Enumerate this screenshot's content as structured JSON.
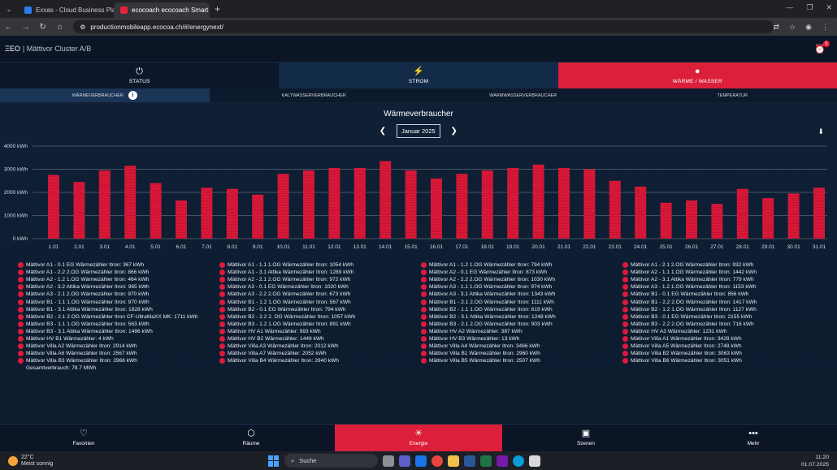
{
  "browser": {
    "tabs": [
      {
        "title": "Exxas - Cloud Business Platform",
        "color": "#2b7de9"
      },
      {
        "title": "ecocoach ecocoach Smart Energ",
        "color": "#e8223c"
      }
    ],
    "url": "productionmobileapp.ecocoa.ch/#/energynext/"
  },
  "header": {
    "logo": "ΞEO",
    "title": "Mättivor Cluster A/B",
    "alarm_count": "5"
  },
  "main_tabs": [
    {
      "label": "STATUS",
      "icon": "power-icon"
    },
    {
      "label": "STROM",
      "icon": "bolt-icon"
    },
    {
      "label": "WÄRME / WASSER",
      "icon": "drop-icon"
    }
  ],
  "sub_tabs": [
    {
      "label": "WÄRMEVERBRAUCHER"
    },
    {
      "label": "KALTWASSERVERBRAUCHER"
    },
    {
      "label": "WARMWASSERVERBRAUCHER"
    },
    {
      "label": "TEMPERATUR"
    }
  ],
  "info_glyph": "i",
  "chart_title": "Wärmeverbraucher",
  "month": "Januar 2025",
  "chart_data": {
    "type": "bar",
    "stacked": true,
    "ylim": [
      0,
      4000
    ],
    "yticks": [
      "0 kWh",
      "1000 kWh",
      "2000 kWh",
      "3000 kWh",
      "4000 kWh"
    ],
    "categories": [
      "1.01",
      "2.01",
      "3.01",
      "4.01",
      "5.01",
      "6.01",
      "7.01",
      "8.01",
      "9.01",
      "10.01",
      "11.01",
      "12.01",
      "13.01",
      "14.01",
      "15.01",
      "16.01",
      "17.01",
      "18.01",
      "19.01",
      "20.01",
      "21.01",
      "22.01",
      "23.01",
      "24.01",
      "25.01",
      "26.01",
      "27.01",
      "28.01",
      "29.01",
      "30.01",
      "31.01"
    ],
    "values": [
      2750,
      2450,
      2950,
      3150,
      2400,
      1650,
      2200,
      2150,
      1900,
      2800,
      2950,
      3050,
      3050,
      3350,
      2950,
      2600,
      2800,
      2950,
      3050,
      3200,
      3050,
      3000,
      2500,
      2250,
      1550,
      1650,
      1500,
      2150,
      1750,
      1950,
      2200
    ],
    "bar_color": "#e0193a",
    "grid": true
  },
  "legend": [
    [
      "Mättivor A1 - 0.1 EG Wärmezähler Itron: 367 kWh",
      "Mättivor A1 - 2.2 2.OG Wärmezähler Itron: 866 kWh",
      "Mättivor A2 - 1.2 1.OG Wärmezähler Itron: 464 kWh",
      "Mättivor A2 - 3.2 Attika Wärmezähler Itron: 965 kWh",
      "Mättivor A3 - 2.1 2.OG Wärmezähler Itron: 970 kWh",
      "Mättivor B1 - 1.1 1.OG Wärmezähler Itron: 970 kWh",
      "Mättivor B1 - 3.1 Attika Wärmezähler Itron: 1828 kWh",
      "Mättivor B2 - 2.1 2.OG Wärmezähler Itron CF-UltraMaXX MK: 1711 kWh",
      "Mättivor B3 - 1.1 1.OG Wärmezähler Itron: 563 kWh",
      "Mättivor B3 - 3.1 Attika Wärmezähler Itron: 1496 kWh",
      "Mättivor HV B1 Wärmezähler: 4 kWh",
      "Mättivor Villa A2 Wärmezähler Itron: 2914 kWh",
      "Mättivor Villa A6 Wärmezähler Itron: 2567 kWh",
      "Mättivor Villa B3 Wärmezähler Itron: 2966 kWh"
    ],
    [
      "Mättivor A1 - 1.1 1.OG Wärmezähler Itron: 1054 kWh",
      "Mättivor A1 - 3.1 Attika Wärmezähler Itron: 1289 kWh",
      "Mättivor A2 - 2.1 2.OG Wärmezähler Itron: 972 kWh",
      "Mättivor A3 - 0.1 EG Wärmezähler Itron: 1020 kWh",
      "Mättivor A3 - 2.2 2.OG Wärmezähler Itron: 673 kWh",
      "Mättivor B1 - 1.2 1.OG Wärmezähler Itron: 567 kWh",
      "Mättivor B2 - 0.1 EG Wärmezähler Itron: 794 kWh",
      "Mättivor B2 - 2.2 2. OG Wärmezähler Itron: 1057 kWh",
      "Mättivor B3 - 1.2 1.OG Wärmezähler Itron: 891 kWh",
      "Mättivor HV A1 Wärmezähler: 993 kWh",
      "Mättivor HV B2 Wärmezähler: 1449 kWh",
      "Mättivor Villa A3 Wärmezähler Itron: 2012 kWh",
      "Mättivor Villa A7 Wärmezähler: 2052 kWh",
      "Mättivor Villa B4 Wärmezähler Itron: 2940 kWh"
    ],
    [
      "Mättivor A1 - 1.2 1.OG Wärmezähler Itron: 794 kWh",
      "Mättivor A2 - 0.1 EG Wärmezähler Itron: 873 kWh",
      "Mättivor A2 - 2.2 2.OG Wärmezähler Itron: 1030 kWh",
      "Mättivor A3 - 1.1 1.OG Wärmezähler Itron: 974 kWh",
      "Mättivor A3 - 3.1 Attika Wärmezähler Itron: 1343 kWh",
      "Mättivor B1 - 2.1 2.OG Wärmezähler Itron: 1111 kWh",
      "Mättivor B2 - 1.1 1.OG Wärmezähler Itron: 619 kWh",
      "Mättivor B2 - 3.1 Attika Wärmezähler Itron: 1248 kWh",
      "Mättivor B3 - 2.1 2.OG Wärmezähler Itron: 903 kWh",
      "Mättivor HV A2 Wärmezähler: 387 kWh",
      "Mättivor HV B3 Wärmezähler: 13 kWh",
      "Mättivor Villa A4 Wärmezähler Itron: 3466 kWh",
      "Mättivor Villa B1 Wärmezähler Itron: 2960 kWh",
      "Mättivor Villa B5 Wärmezähler Itron: 2507 kWh"
    ],
    [
      "Mättivor A1 - 2.1 2.OG Wärmezähler Itron: 932 kWh",
      "Mättivor A2 - 1.1 1.OG Wärmezähler Itron: 1442 kWh",
      "Mättivor A2 - 3.1 Attika Wärmezähler Itron: 779 kWh",
      "Mättivor A3 - 1.2 1.OG Wärmezähler Itron: 1153 kWh",
      "Mättivor B1 - 0.1 EG Wärmezähler Itron: 856 kWh",
      "Mättivor B1 - 2.2 2.OG Wärmezähler Itron: 1417 kWh",
      "Mättivor B2 - 1.2 1.OG Wärmezähler Itron: 1127 kWh",
      "Mättivor B3 - 0.1 EG Wärmezähler Itron: 2155 kWh",
      "Mättivor B3 - 2.2 2.OG Wärmezähler Itron: 716 kWh",
      "Mättivor HV A3 Wärmezähler: 1231 kWh",
      "Mättivor Villa A1 Wärmezähler Itron: 3428 kWh",
      "Mättivor Villa A5 Wärmezähler Itron: 2748 kWh",
      "Mättivor Villa B2 Wärmezähler Itron: 3063 kWh",
      "Mättivor Villa B6 Wärmezähler Itron: 3051 kWh"
    ]
  ],
  "total": "Gesamtverbrauch: 78.7 MWh",
  "bottom_nav": [
    {
      "label": "Favoriten",
      "icon": "heart-icon"
    },
    {
      "label": "Räume",
      "icon": "cube-icon"
    },
    {
      "label": "Energie",
      "icon": "energy-icon"
    },
    {
      "label": "Szenen",
      "icon": "image-icon"
    },
    {
      "label": "Mehr",
      "icon": "more-icon"
    }
  ],
  "taskbar": {
    "temp": "22°C",
    "weather": "Meist sonnig",
    "search": "Suche",
    "time": "11:20",
    "date": "01.07.2025"
  }
}
